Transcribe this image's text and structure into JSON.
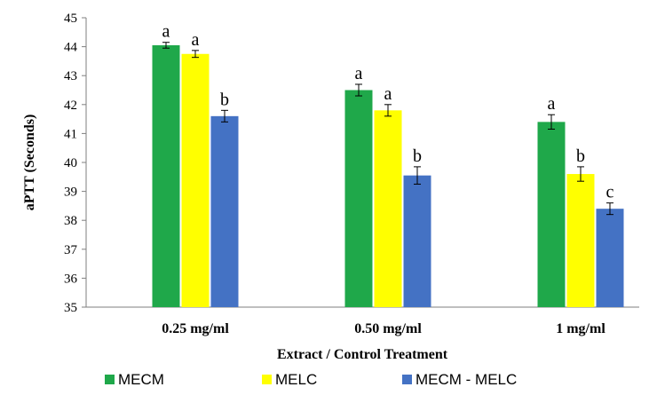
{
  "chart_data": {
    "type": "bar",
    "title": "",
    "xlabel": "Extract / Control Treatment",
    "ylabel": "aPTT (Seconds)",
    "ylim": [
      35,
      45
    ],
    "yticks": [
      "35",
      "36",
      "37",
      "38",
      "39",
      "40",
      "41",
      "42",
      "43",
      "44",
      "45"
    ],
    "grid": false,
    "legend_position": "bottom",
    "categories": [
      "0.25 mg/ml",
      "0.50 mg/ml",
      "1 mg/ml"
    ],
    "series": [
      {
        "name": "MECM",
        "color": "#1fa84a",
        "values": [
          44.05,
          42.5,
          41.4
        ],
        "errors": [
          0.1,
          0.2,
          0.25
        ],
        "letters": [
          "a",
          "a",
          "a"
        ]
      },
      {
        "name": "MELC",
        "color": "#ffff00",
        "values": [
          43.75,
          41.8,
          39.6
        ],
        "errors": [
          0.12,
          0.2,
          0.25
        ],
        "letters": [
          "a",
          "a",
          "b"
        ]
      },
      {
        "name": "MECM - MELC",
        "color": "#4472c4",
        "values": [
          41.6,
          39.55,
          38.4
        ],
        "errors": [
          0.2,
          0.3,
          0.2
        ],
        "letters": [
          "b",
          "b",
          "c"
        ]
      }
    ]
  }
}
